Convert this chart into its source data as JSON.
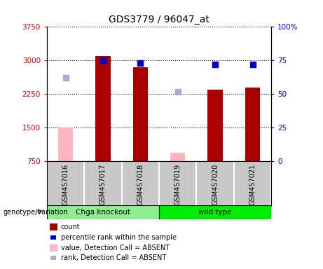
{
  "title": "GDS3779 / 96047_at",
  "samples": [
    "GSM457016",
    "GSM457017",
    "GSM457018",
    "GSM457019",
    "GSM457020",
    "GSM457021"
  ],
  "bar_values": [
    null,
    3100,
    2850,
    null,
    2350,
    2400
  ],
  "bar_absent_values": [
    1500,
    null,
    null,
    950,
    null,
    null
  ],
  "rank_values": [
    null,
    75,
    73,
    null,
    72,
    72
  ],
  "rank_absent_values": [
    62,
    null,
    null,
    52,
    null,
    null
  ],
  "ylim_left": [
    750,
    3750
  ],
  "ylim_right": [
    0,
    100
  ],
  "yticks_left": [
    750,
    1500,
    2250,
    3000,
    3750
  ],
  "ytick_labels_left": [
    "750",
    "1500",
    "2250",
    "3000",
    "3750"
  ],
  "yticks_right": [
    0,
    25,
    50,
    75,
    100
  ],
  "ytick_labels_right": [
    "0",
    "25",
    "50",
    "75",
    "100%"
  ],
  "group1_label": "Chga knockout",
  "group2_label": "wild type",
  "group1_indices": [
    0,
    1,
    2
  ],
  "group2_indices": [
    3,
    4,
    5
  ],
  "group1_color": "#90EE90",
  "group2_color": "#00EE00",
  "bar_color": "#AA0000",
  "bar_absent_color": "#FFB6C1",
  "rank_color": "#0000CC",
  "rank_absent_color": "#AAAADD",
  "label_bg_color": "#C8C8C8",
  "genotype_label": "genotype/variation",
  "legend_items": [
    {
      "label": "count",
      "color": "#AA0000",
      "type": "rect"
    },
    {
      "label": "percentile rank within the sample",
      "color": "#0000CC",
      "type": "square"
    },
    {
      "label": "value, Detection Call = ABSENT",
      "color": "#FFB6C1",
      "type": "rect"
    },
    {
      "label": "rank, Detection Call = ABSENT",
      "color": "#AAAADD",
      "type": "square"
    }
  ]
}
